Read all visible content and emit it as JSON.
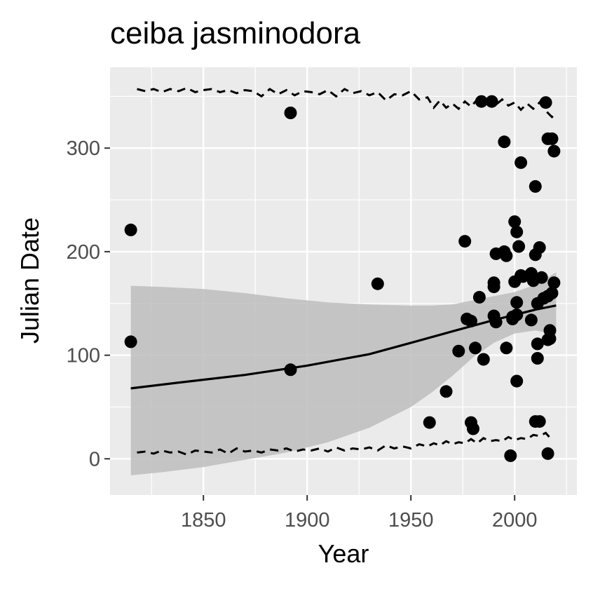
{
  "chart_data": {
    "type": "scatter",
    "title": "ceiba jasminodora",
    "xlabel": "Year",
    "ylabel": "Julian Date",
    "xlim": [
      1805,
      2030
    ],
    "ylim": [
      -35,
      378
    ],
    "x_ticks": [
      1850,
      1900,
      1950,
      2000
    ],
    "x_tick_labels": [
      "1850",
      "1900",
      "1950",
      "2000"
    ],
    "y_ticks": [
      0,
      100,
      200,
      300
    ],
    "y_tick_labels": [
      "0",
      "100",
      "200",
      "300"
    ],
    "grid": true,
    "legend": "none",
    "colors": {
      "panel": "#ebebeb",
      "grid": "#ffffff",
      "points": "#000000",
      "ribbon": "#bdbdbd",
      "trend": "#000000"
    },
    "points": [
      [
        1815,
        221
      ],
      [
        1815,
        113
      ],
      [
        1892,
        334
      ],
      [
        1892,
        86
      ],
      [
        1934,
        169
      ],
      [
        1959,
        35
      ],
      [
        1967,
        65
      ],
      [
        1973,
        104
      ],
      [
        1976,
        210
      ],
      [
        1977,
        135
      ],
      [
        1979,
        35
      ],
      [
        1979,
        133
      ],
      [
        1980,
        29
      ],
      [
        1981,
        107
      ],
      [
        1983,
        156
      ],
      [
        1985,
        96
      ],
      [
        1984,
        345
      ],
      [
        1989,
        345
      ],
      [
        1990,
        166
      ],
      [
        1990,
        170
      ],
      [
        1990,
        138
      ],
      [
        1991,
        198
      ],
      [
        1991,
        132
      ],
      [
        1995,
        306
      ],
      [
        1995,
        200
      ],
      [
        1996,
        196
      ],
      [
        1996,
        107
      ],
      [
        1998,
        3
      ],
      [
        1999,
        135
      ],
      [
        1999,
        137
      ],
      [
        2000,
        229
      ],
      [
        2000,
        171
      ],
      [
        2001,
        219
      ],
      [
        2001,
        151
      ],
      [
        2001,
        139
      ],
      [
        2001,
        75
      ],
      [
        2002,
        205
      ],
      [
        2003,
        286
      ],
      [
        2003,
        177
      ],
      [
        2004,
        176
      ],
      [
        2008,
        134
      ],
      [
        2008,
        179
      ],
      [
        2009,
        172
      ],
      [
        2010,
        263
      ],
      [
        2010,
        197
      ],
      [
        2010,
        36
      ],
      [
        2011,
        150
      ],
      [
        2011,
        111
      ],
      [
        2011,
        97
      ],
      [
        2012,
        204
      ],
      [
        2012,
        36
      ],
      [
        2013,
        175
      ],
      [
        2015,
        344
      ],
      [
        2016,
        309
      ],
      [
        2016,
        157
      ],
      [
        2016,
        115
      ],
      [
        2016,
        5
      ],
      [
        2017,
        124
      ],
      [
        2018,
        309
      ],
      [
        2018,
        160
      ],
      [
        2019,
        297
      ],
      [
        2019,
        170
      ],
      [
        2017,
        116
      ],
      [
        2014,
        155
      ]
    ],
    "trend": {
      "x": [
        1815,
        1840,
        1870,
        1900,
        1930,
        1950,
        1970,
        1990,
        2010,
        2020
      ],
      "y": [
        68,
        74,
        81,
        90,
        101,
        112,
        123,
        134,
        144,
        148
      ]
    },
    "ribbon": {
      "x": [
        1815,
        1830,
        1850,
        1870,
        1890,
        1910,
        1930,
        1950,
        1960,
        1970,
        1980,
        1990,
        2000,
        2010,
        2020
      ],
      "upper": [
        167,
        166,
        164,
        160,
        155,
        151,
        149,
        148,
        148,
        149,
        153,
        157,
        161,
        168,
        180
      ],
      "lower": [
        -16,
        -13,
        -8,
        -1,
        6,
        16,
        30,
        50,
        64,
        80,
        98,
        112,
        121,
        124,
        120
      ]
    },
    "upper_dashed": {
      "x": [
        1818,
        1822,
        1826,
        1830,
        1834,
        1838,
        1842,
        1846,
        1850,
        1854,
        1858,
        1862,
        1866,
        1870,
        1874,
        1878,
        1882,
        1886,
        1890,
        1894,
        1898,
        1902,
        1906,
        1910,
        1914,
        1918,
        1922,
        1926,
        1930,
        1934,
        1938,
        1942,
        1946,
        1950,
        1954,
        1958,
        1961,
        1964,
        1967,
        1970,
        1973,
        1976,
        1979,
        1982,
        1985,
        1988,
        1991,
        1994,
        1997,
        2000,
        2003,
        2006,
        2009,
        2012,
        2015,
        2018,
        2020
      ],
      "y": [
        357,
        355,
        357,
        354,
        357,
        355,
        358,
        354,
        356,
        357,
        354,
        356,
        353,
        356,
        355,
        350,
        357,
        352,
        356,
        351,
        355,
        354,
        352,
        356,
        350,
        357,
        353,
        355,
        351,
        354,
        346,
        352,
        351,
        355,
        347,
        349,
        339,
        346,
        339,
        343,
        338,
        345,
        340,
        347,
        343,
        345,
        342,
        347,
        341,
        344,
        337,
        343,
        338,
        344,
        336,
        330,
        334
      ]
    },
    "lower_dashed": {
      "x": [
        1818,
        1822,
        1826,
        1830,
        1834,
        1838,
        1842,
        1846,
        1850,
        1854,
        1858,
        1862,
        1866,
        1870,
        1874,
        1878,
        1882,
        1886,
        1890,
        1894,
        1898,
        1902,
        1906,
        1910,
        1914,
        1918,
        1922,
        1926,
        1930,
        1934,
        1938,
        1942,
        1946,
        1950,
        1954,
        1958,
        1961,
        1964,
        1967,
        1970,
        1973,
        1976,
        1979,
        1982,
        1985,
        1988,
        1991,
        1994,
        1997,
        2000,
        2003,
        2006,
        2009,
        2012,
        2015,
        2018
      ],
      "y": [
        6,
        7,
        5,
        8,
        6,
        7,
        4,
        8,
        7,
        6,
        9,
        5,
        10,
        7,
        8,
        6,
        9,
        8,
        10,
        7,
        9,
        8,
        10,
        7,
        11,
        8,
        10,
        9,
        11,
        8,
        13,
        10,
        12,
        10,
        14,
        12,
        15,
        13,
        17,
        14,
        16,
        15,
        19,
        15,
        20,
        17,
        18,
        17,
        21,
        18,
        20,
        19,
        23,
        22,
        25,
        18
      ]
    }
  }
}
